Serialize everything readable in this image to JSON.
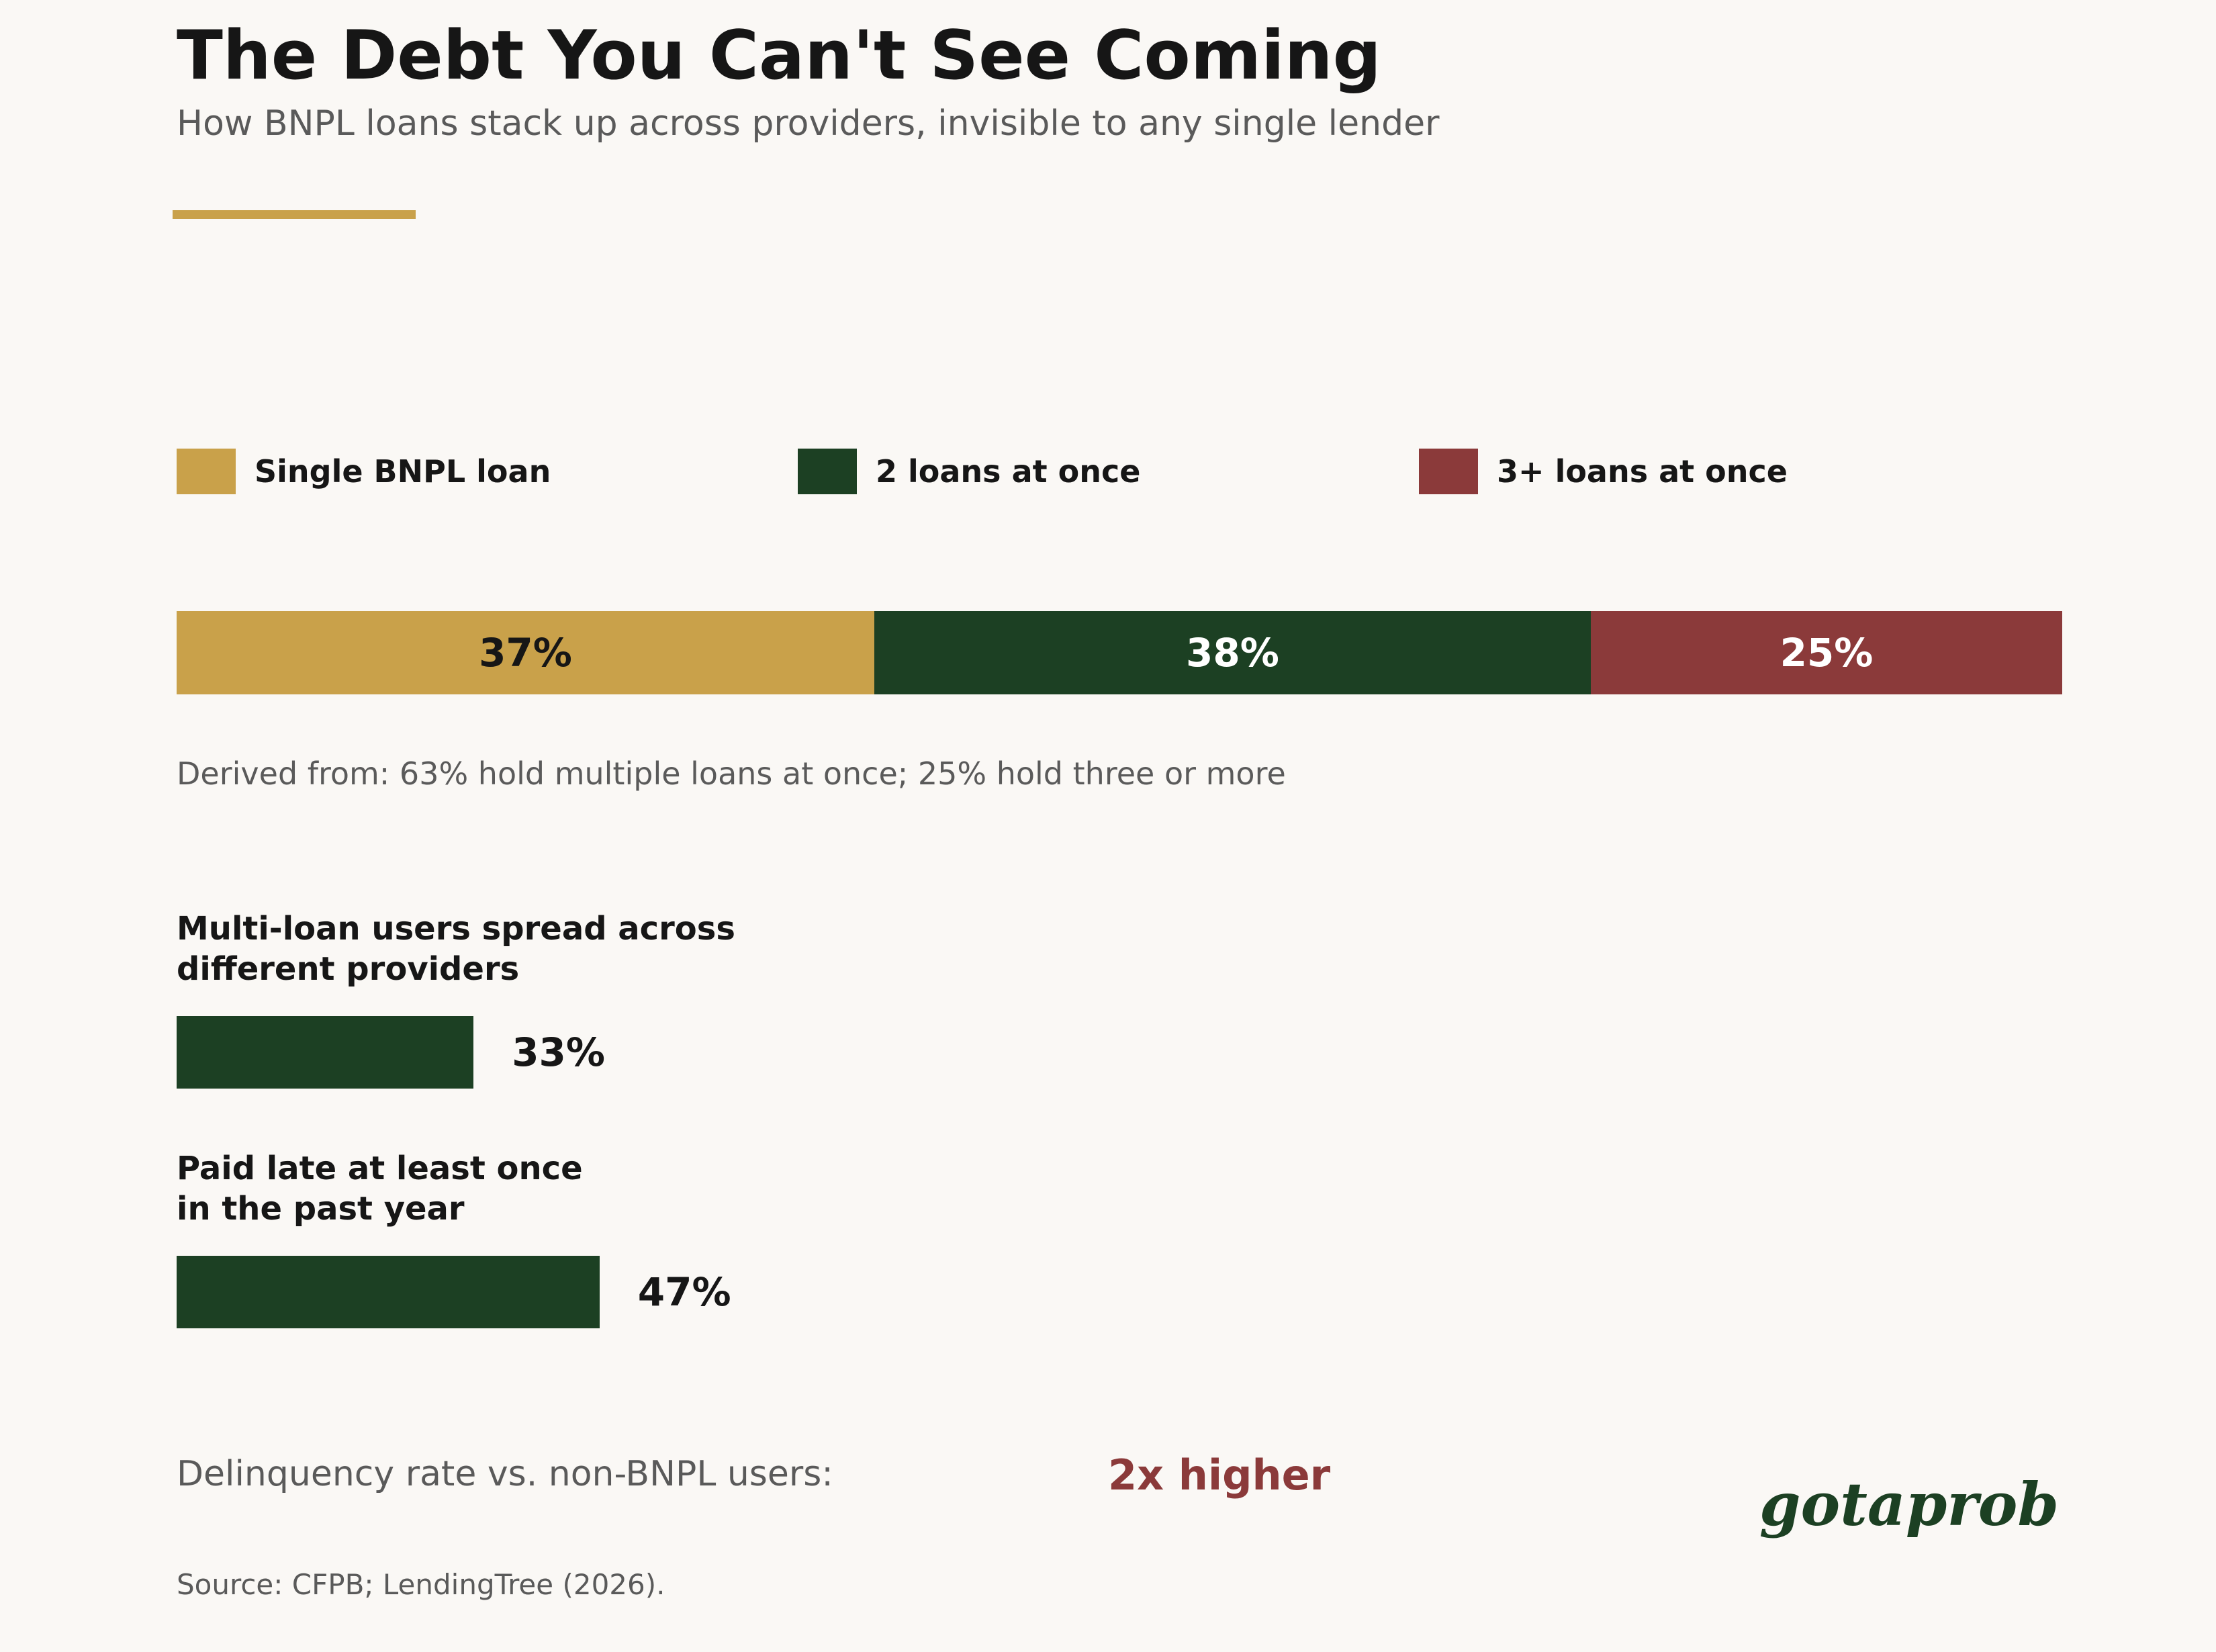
{
  "title": "The Debt You Can't See Coming",
  "subtitle": "How BNPL loans stack up across providers, invisible to any single lender",
  "colors": {
    "accent": "#c9a14a",
    "single": "#c9a14a",
    "two": "#1c4023",
    "three_plus": "#8b3a3a",
    "text_dark": "#161616",
    "text_muted": "#5a5a5a",
    "background": "#faf8f5"
  },
  "chart_data": [
    {
      "type": "bar",
      "orientation": "horizontal-stacked",
      "series": [
        {
          "name": "Single BNPL loan",
          "value": 37,
          "label": "37%",
          "color": "#c9a14a",
          "label_color": "#161616"
        },
        {
          "name": "2 loans at once",
          "value": 38,
          "label": "38%",
          "color": "#1c4023",
          "label_color": "#ffffff"
        },
        {
          "name": "3+ loans at once",
          "value": 25,
          "label": "25%",
          "color": "#8b3a3a",
          "label_color": "#ffffff"
        }
      ],
      "legend": "top",
      "note": "Derived from: 63% hold multiple loans at once; 25% hold three or more"
    },
    {
      "type": "bar",
      "orientation": "horizontal",
      "max": 100,
      "items": [
        {
          "label": "Multi-loan users spread across\ndifferent providers",
          "value": 33,
          "display": "33%"
        },
        {
          "label": "Paid late at least once\nin the past year",
          "value": 47,
          "display": "47%"
        }
      ]
    }
  ],
  "delinquency": {
    "label": "Delinquency rate vs. non-BNPL users:",
    "value": "2x higher"
  },
  "brand": "gotaprob",
  "source": "Source: CFPB; LendingTree (2026)."
}
